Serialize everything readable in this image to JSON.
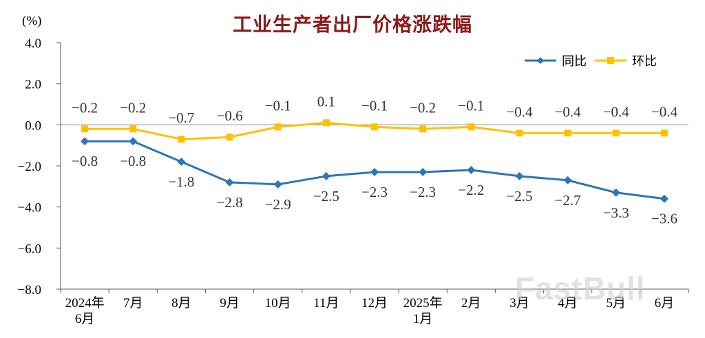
{
  "watermark": "FastBull",
  "colors": {
    "title": "#8b1a1a",
    "axis": "#595959",
    "zero_line": "#808080",
    "tick_text": "#000000",
    "data_label": "#333333",
    "watermark": "#d0d0d0"
  },
  "chart_data": {
    "type": "line",
    "title": "工业生产者出厂价格涨跌幅",
    "y_unit": "(%)",
    "xlabel": "",
    "ylabel": "(%)",
    "ylim": [
      -8.0,
      4.0
    ],
    "yticks": [
      4.0,
      2.0,
      0.0,
      -2.0,
      -4.0,
      -6.0,
      -8.0
    ],
    "grid": false,
    "legend_position": "top-right",
    "categories": [
      [
        "2024年",
        "6月"
      ],
      [
        "7月"
      ],
      [
        "8月"
      ],
      [
        "9月"
      ],
      [
        "10月"
      ],
      [
        "11月"
      ],
      [
        "12月"
      ],
      [
        "2025年",
        "1月"
      ],
      [
        "2月"
      ],
      [
        "3月"
      ],
      [
        "4月"
      ],
      [
        "5月"
      ],
      [
        "6月"
      ]
    ],
    "series": [
      {
        "id": "yoy",
        "name": "同比",
        "color": "#2e75b6",
        "marker": "diamond",
        "label_position": "below",
        "values": [
          -0.8,
          -0.8,
          -1.8,
          -2.8,
          -2.9,
          -2.5,
          -2.3,
          -2.3,
          -2.2,
          -2.5,
          -2.7,
          -3.3,
          -3.6
        ]
      },
      {
        "id": "mom",
        "name": "环比",
        "color": "#ffc000",
        "marker": "square",
        "label_position": "above",
        "values": [
          -0.2,
          -0.2,
          -0.7,
          -0.6,
          -0.1,
          0.1,
          -0.1,
          -0.2,
          -0.1,
          -0.4,
          -0.4,
          -0.4,
          -0.4
        ]
      }
    ]
  }
}
